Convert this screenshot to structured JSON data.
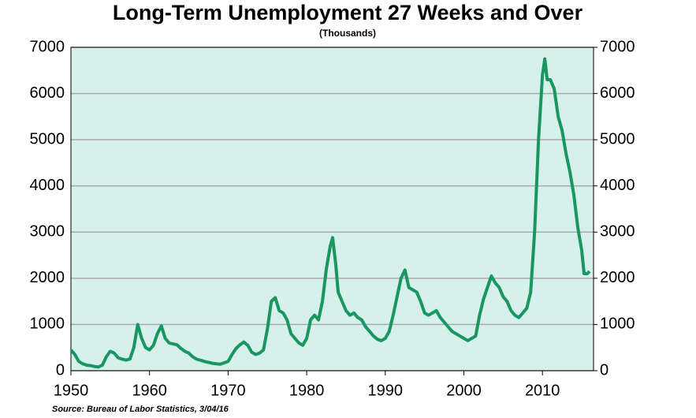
{
  "chart_data": {
    "type": "line",
    "title": "Long-Term Unemployment 27 Weeks and Over",
    "subtitle": "(Thousands)",
    "source": "Source:  Bureau of Labor Statistics, 3/04/16",
    "x": [
      1950,
      1950.5,
      1951,
      1951.5,
      1952,
      1952.5,
      1953,
      1953.5,
      1954,
      1954.5,
      1955,
      1955.5,
      1956,
      1956.5,
      1957,
      1957.5,
      1958,
      1958.5,
      1959,
      1959.5,
      1960,
      1960.5,
      1961,
      1961.5,
      1962,
      1962.5,
      1963,
      1963.5,
      1964,
      1964.5,
      1965,
      1965.5,
      1966,
      1967,
      1968,
      1969,
      1970,
      1970.5,
      1971,
      1971.5,
      1972,
      1972.5,
      1973,
      1973.5,
      1974,
      1974.5,
      1975,
      1975.5,
      1976,
      1976.5,
      1977,
      1977.5,
      1978,
      1978.5,
      1979,
      1979.5,
      1980,
      1980.5,
      1981,
      1981.5,
      1982,
      1982.5,
      1983,
      1983.3,
      1983.7,
      1984,
      1984.5,
      1985,
      1985.5,
      1986,
      1986.5,
      1987,
      1987.5,
      1988,
      1988.5,
      1989,
      1989.5,
      1990,
      1990.5,
      1991,
      1991.5,
      1992,
      1992.5,
      1993,
      1993.5,
      1994,
      1994.5,
      1995,
      1995.5,
      1996,
      1996.5,
      1997,
      1997.5,
      1998,
      1998.5,
      1999,
      1999.5,
      2000,
      2000.5,
      2001,
      2001.5,
      2002,
      2002.5,
      2003,
      2003.5,
      2004,
      2004.5,
      2005,
      2005.5,
      2006,
      2006.5,
      2007,
      2007.5,
      2008,
      2008.5,
      2009,
      2009.5,
      2010,
      2010.3,
      2010.6,
      2011,
      2011.5,
      2012,
      2012.5,
      2013,
      2013.5,
      2014,
      2014.5,
      2015,
      2015.3,
      2015.7,
      2016
    ],
    "series": [
      {
        "name": "Long-Term Unemployment",
        "color": "#1a9660",
        "values": [
          450,
          350,
          200,
          150,
          120,
          110,
          90,
          80,
          120,
          300,
          420,
          380,
          280,
          250,
          230,
          250,
          500,
          1000,
          700,
          500,
          450,
          550,
          800,
          970,
          700,
          600,
          580,
          560,
          480,
          420,
          380,
          300,
          250,
          200,
          160,
          140,
          200,
          350,
          480,
          560,
          620,
          550,
          400,
          350,
          380,
          450,
          900,
          1500,
          1580,
          1300,
          1250,
          1100,
          800,
          700,
          600,
          550,
          700,
          1100,
          1200,
          1100,
          1500,
          2200,
          2700,
          2880,
          2300,
          1700,
          1500,
          1300,
          1200,
          1250,
          1150,
          1100,
          950,
          850,
          750,
          680,
          650,
          700,
          850,
          1200,
          1600,
          2000,
          2180,
          1800,
          1750,
          1700,
          1500,
          1250,
          1200,
          1250,
          1300,
          1150,
          1050,
          950,
          850,
          800,
          750,
          700,
          650,
          700,
          750,
          1200,
          1550,
          1800,
          2050,
          1900,
          1800,
          1600,
          1500,
          1300,
          1200,
          1150,
          1250,
          1350,
          1700,
          3000,
          5000,
          6400,
          6750,
          6300,
          6300,
          6100,
          5500,
          5200,
          4700,
          4300,
          3800,
          3100,
          2600,
          2100,
          2100,
          2150
        ]
      }
    ],
    "xlim": [
      1950,
      2016.5
    ],
    "xticks": [
      1950,
      1960,
      1970,
      1980,
      1990,
      2000,
      2010
    ],
    "ylim": [
      0,
      7000
    ],
    "yticks": [
      0,
      1000,
      2000,
      3000,
      4000,
      5000,
      6000,
      7000
    ],
    "y2lim": [
      0,
      7000
    ],
    "y2ticks": [
      0,
      1000,
      2000,
      3000,
      4000,
      5000,
      6000,
      7000
    ],
    "grid": true,
    "background": "#d6f0ec"
  }
}
